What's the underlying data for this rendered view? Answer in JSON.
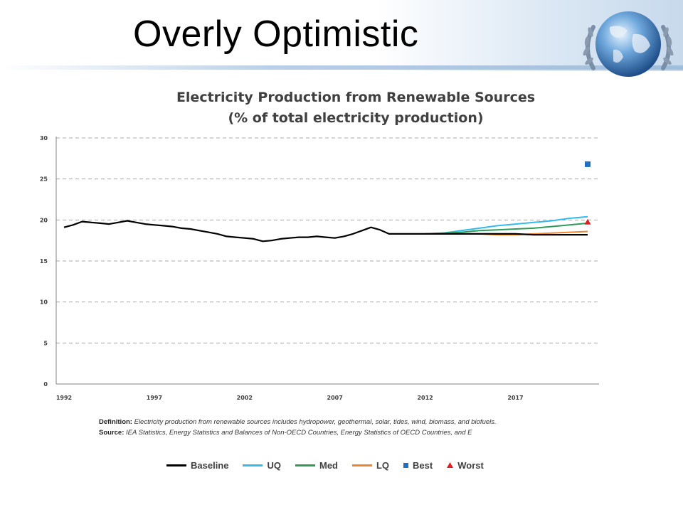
{
  "slide": {
    "title": "Overly Optimistic"
  },
  "chart_data": {
    "type": "line",
    "title": "Electricity Production from Renewable Sources",
    "subtitle": "(% of total electricity production)",
    "ylim": [
      0,
      30
    ],
    "yticks": [
      0,
      5,
      10,
      15,
      20,
      25,
      30
    ],
    "xlim": [
      1992,
      2021
    ],
    "xticks": [
      "1992",
      "1997",
      "2002",
      "2007",
      "2012",
      "2017"
    ],
    "xtick_values": [
      1992,
      1997,
      2002,
      2007,
      2012,
      2017
    ],
    "grid": true,
    "legend_position": "bottom",
    "series": [
      {
        "name": "Baseline",
        "color": "#000000",
        "points": [
          [
            1992.0,
            19.1
          ],
          [
            1992.5,
            19.4
          ],
          [
            1993.0,
            19.8
          ],
          [
            1993.5,
            19.7
          ],
          [
            1994.0,
            19.6
          ],
          [
            1994.5,
            19.5
          ],
          [
            1995.0,
            19.7
          ],
          [
            1995.5,
            19.9
          ],
          [
            1996.0,
            19.7
          ],
          [
            1996.5,
            19.5
          ],
          [
            1997.0,
            19.4
          ],
          [
            1997.5,
            19.3
          ],
          [
            1998.0,
            19.2
          ],
          [
            1998.5,
            19.0
          ],
          [
            1999.0,
            18.9
          ],
          [
            1999.5,
            18.7
          ],
          [
            2000.0,
            18.5
          ],
          [
            2000.5,
            18.3
          ],
          [
            2001.0,
            18.0
          ],
          [
            2001.5,
            17.9
          ],
          [
            2002.0,
            17.8
          ],
          [
            2002.5,
            17.7
          ],
          [
            2003.0,
            17.4
          ],
          [
            2003.5,
            17.5
          ],
          [
            2004.0,
            17.7
          ],
          [
            2004.5,
            17.8
          ],
          [
            2005.0,
            17.9
          ],
          [
            2005.5,
            17.9
          ],
          [
            2006.0,
            18.0
          ],
          [
            2006.5,
            17.9
          ],
          [
            2007.0,
            17.8
          ],
          [
            2007.5,
            18.0
          ],
          [
            2008.0,
            18.3
          ],
          [
            2008.5,
            18.7
          ],
          [
            2009.0,
            19.1
          ],
          [
            2009.5,
            18.8
          ],
          [
            2010.0,
            18.3
          ],
          [
            2011.0,
            18.3
          ],
          [
            2012.0,
            18.3
          ],
          [
            2013.0,
            18.3
          ],
          [
            2014.0,
            18.3
          ],
          [
            2015.0,
            18.3
          ],
          [
            2016.0,
            18.3
          ],
          [
            2017.0,
            18.3
          ],
          [
            2018.0,
            18.2
          ],
          [
            2019.0,
            18.2
          ],
          [
            2020.0,
            18.2
          ],
          [
            2021.0,
            18.2
          ]
        ]
      },
      {
        "name": "UQ",
        "color": "#33bbee",
        "points": [
          [
            2012.0,
            18.3
          ],
          [
            2013.0,
            18.4
          ],
          [
            2014.0,
            18.7
          ],
          [
            2015.0,
            19.0
          ],
          [
            2016.0,
            19.3
          ],
          [
            2017.0,
            19.5
          ],
          [
            2018.0,
            19.7
          ],
          [
            2019.0,
            19.9
          ],
          [
            2020.0,
            20.2
          ],
          [
            2021.0,
            20.4
          ]
        ]
      },
      {
        "name": "Med",
        "color": "#2e9a5c",
        "points": [
          [
            2012.0,
            18.3
          ],
          [
            2013.0,
            18.4
          ],
          [
            2014.0,
            18.5
          ],
          [
            2015.0,
            18.7
          ],
          [
            2016.0,
            18.8
          ],
          [
            2017.0,
            18.9
          ],
          [
            2018.0,
            19.0
          ],
          [
            2019.0,
            19.2
          ],
          [
            2020.0,
            19.4
          ],
          [
            2021.0,
            19.6
          ]
        ]
      },
      {
        "name": "LQ",
        "color": "#f0852d",
        "points": [
          [
            2012.0,
            18.3
          ],
          [
            2013.0,
            18.3
          ],
          [
            2014.0,
            18.3
          ],
          [
            2015.0,
            18.3
          ],
          [
            2016.0,
            18.2
          ],
          [
            2017.0,
            18.2
          ],
          [
            2018.0,
            18.3
          ],
          [
            2019.0,
            18.4
          ],
          [
            2020.0,
            18.5
          ],
          [
            2021.0,
            18.6
          ]
        ]
      }
    ],
    "markers": [
      {
        "name": "Best",
        "color": "#1f6fc5",
        "shape": "square",
        "x": 2021,
        "y": 26.8
      },
      {
        "name": "Worst",
        "color": "#e02020",
        "shape": "triangle",
        "x": 2021,
        "y": 19.7
      }
    ],
    "notes": {
      "definition_label": "Definition:",
      "definition_text": "Electricity production from renewable sources includes hydropower, geothermal, solar, tides, wind, biomass, and biofuels.",
      "source_label": "Source:",
      "source_text": "IEA Statistics, Energy Statistics and Balances of Non-OECD Countries, Energy Statistics of OECD Countries, and E"
    }
  }
}
